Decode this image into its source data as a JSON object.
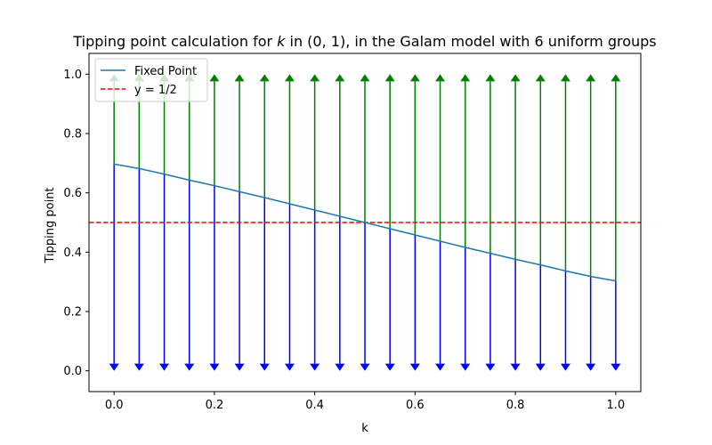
{
  "chart_data": {
    "type": "line",
    "title_prefix": "Tipping point calculation for ",
    "title_var": "k",
    "title_suffix": " in (0, 1), in the Galam model with 6 uniform groups",
    "xlabel": "k",
    "ylabel": "Tipping point",
    "xlim": [
      -0.05,
      1.05
    ],
    "ylim": [
      -0.07,
      1.07
    ],
    "xticks": [
      0.0,
      0.2,
      0.4,
      0.6,
      0.8,
      1.0
    ],
    "xtick_labels": [
      "0.0",
      "0.2",
      "0.4",
      "0.6",
      "0.8",
      "1.0"
    ],
    "yticks": [
      0.0,
      0.2,
      0.4,
      0.6,
      0.8,
      1.0
    ],
    "ytick_labels": [
      "0.0",
      "0.2",
      "0.4",
      "0.6",
      "0.8",
      "1.0"
    ],
    "grid": false,
    "legend_position": "top-left",
    "series": [
      {
        "name": "Fixed Point",
        "color": "#1f77b4",
        "x": [
          0.0,
          0.05,
          0.1,
          0.15,
          0.2,
          0.25,
          0.3,
          0.35,
          0.4,
          0.45,
          0.5,
          0.55,
          0.6,
          0.65,
          0.7,
          0.75,
          0.8,
          0.85,
          0.9,
          0.95,
          1.0
        ],
        "y": [
          0.697,
          0.682,
          0.663,
          0.643,
          0.624,
          0.604,
          0.584,
          0.563,
          0.542,
          0.521,
          0.5,
          0.479,
          0.458,
          0.437,
          0.416,
          0.396,
          0.376,
          0.357,
          0.337,
          0.318,
          0.303
        ]
      }
    ],
    "reference_line": {
      "name": "y = 1/2",
      "y": 0.5,
      "color": "#ff0000",
      "style": "dashed"
    },
    "arrows": {
      "up_color": "#008000",
      "down_color": "#0000ff",
      "up_target": 1.0,
      "down_target": 0.0
    }
  }
}
